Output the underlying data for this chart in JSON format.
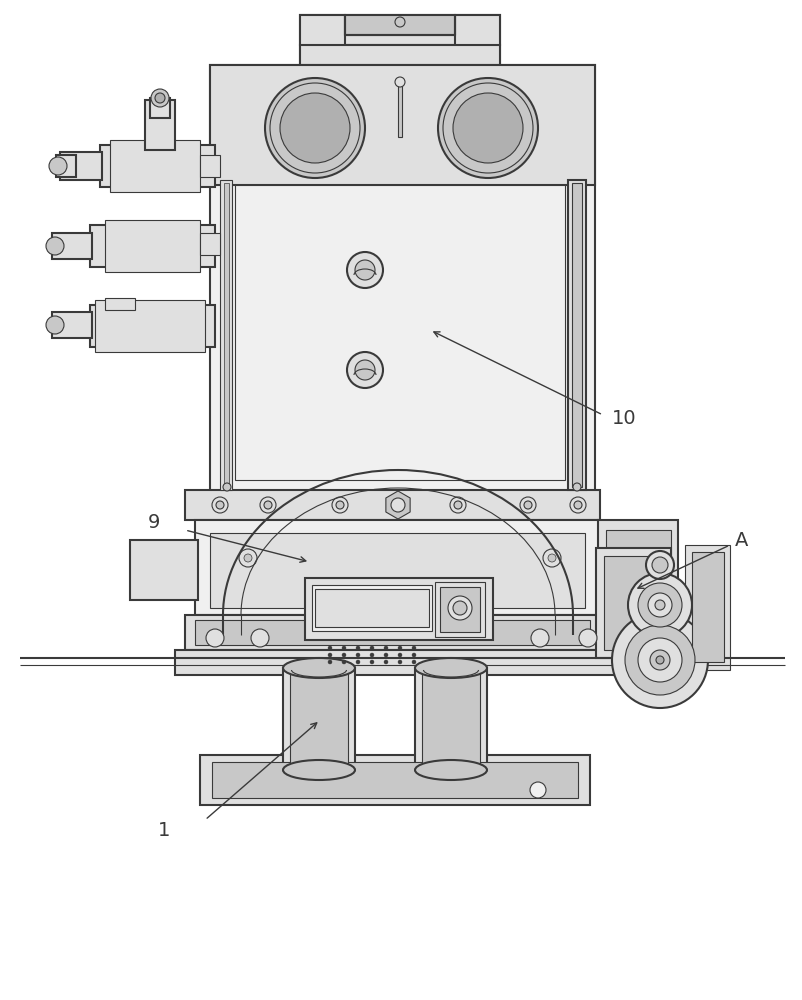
{
  "bg_color": "#ffffff",
  "lc": "#3a3a3a",
  "lc2": "#555555",
  "fc_light": "#f0f0f0",
  "fc_mid": "#e0e0e0",
  "fc_dark": "#c8c8c8",
  "fc_darker": "#b0b0b0",
  "lw1": 1.5,
  "lw2": 0.8,
  "lw3": 0.5
}
